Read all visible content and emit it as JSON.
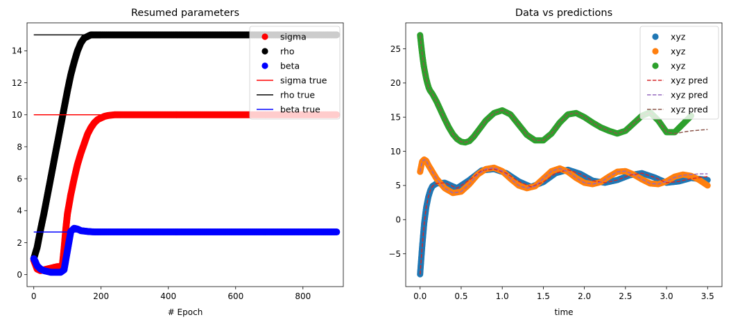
{
  "chart_data": [
    {
      "type": "scatter",
      "title": "Resumed parameters",
      "xlabel": "# Epoch",
      "ylabel": "",
      "xlim": [
        -20,
        920
      ],
      "ylim": [
        -0.75,
        15.75
      ],
      "xticks": [
        0,
        200,
        400,
        600,
        800
      ],
      "yticks": [
        0,
        2,
        4,
        6,
        8,
        10,
        12,
        14
      ],
      "grid": false,
      "legend_position": "top-right",
      "series": [
        {
          "name": "sigma",
          "kind": "points",
          "color": "#ff0000",
          "x": [
            0,
            10,
            20,
            30,
            40,
            50,
            60,
            70,
            80,
            85,
            90,
            95,
            100,
            110,
            120,
            130,
            140,
            150,
            160,
            170,
            180,
            190,
            200,
            210,
            220,
            240,
            260,
            300,
            400,
            500,
            600,
            700,
            800,
            900
          ],
          "y": [
            0.9,
            0.35,
            0.25,
            0.3,
            0.35,
            0.4,
            0.45,
            0.5,
            0.5,
            0.6,
            1.6,
            2.8,
            3.8,
            5.0,
            6.0,
            6.9,
            7.6,
            8.2,
            8.8,
            9.2,
            9.5,
            9.7,
            9.8,
            9.9,
            9.95,
            10.0,
            10.0,
            10.0,
            10.0,
            10.0,
            10.0,
            10.0,
            10.0,
            10.0
          ]
        },
        {
          "name": "rho",
          "kind": "points",
          "color": "#000000",
          "x": [
            0,
            10,
            20,
            30,
            40,
            50,
            60,
            70,
            80,
            90,
            100,
            110,
            120,
            130,
            140,
            150,
            160,
            170,
            180,
            190,
            200,
            250,
            300,
            400,
            500,
            600,
            700,
            800,
            900
          ],
          "y": [
            1.0,
            1.7,
            2.8,
            3.8,
            4.9,
            6.0,
            7.1,
            8.2,
            9.3,
            10.4,
            11.5,
            12.5,
            13.3,
            14.0,
            14.5,
            14.8,
            14.9,
            15.0,
            15.0,
            15.0,
            15.0,
            15.0,
            15.0,
            15.0,
            15.0,
            15.0,
            15.0,
            15.0,
            15.0
          ]
        },
        {
          "name": "beta",
          "kind": "points",
          "color": "#0000ff",
          "x": [
            0,
            5,
            10,
            20,
            30,
            40,
            50,
            60,
            70,
            80,
            90,
            100,
            110,
            120,
            130,
            140,
            160,
            180,
            200,
            300,
            400,
            500,
            600,
            700,
            800,
            900
          ],
          "y": [
            1.0,
            0.8,
            0.55,
            0.35,
            0.25,
            0.2,
            0.15,
            0.15,
            0.15,
            0.15,
            0.3,
            1.5,
            2.7,
            2.9,
            2.85,
            2.75,
            2.7,
            2.67,
            2.67,
            2.67,
            2.67,
            2.67,
            2.67,
            2.67,
            2.67,
            2.67
          ]
        },
        {
          "name": "sigma true",
          "kind": "line",
          "color": "#ff0000",
          "x": [
            0,
            900
          ],
          "y": [
            10.0,
            10.0
          ]
        },
        {
          "name": "rho true",
          "kind": "line",
          "color": "#000000",
          "x": [
            0,
            900
          ],
          "y": [
            15.0,
            15.0
          ]
        },
        {
          "name": "beta true",
          "kind": "line",
          "color": "#0000ff",
          "x": [
            0,
            900
          ],
          "y": [
            2.667,
            2.667
          ]
        }
      ]
    },
    {
      "type": "scatter",
      "title": "Data vs predictions",
      "xlabel": "time",
      "ylabel": "",
      "xlim": [
        -0.175,
        3.675
      ],
      "ylim": [
        -9.8,
        28.8
      ],
      "xticks": [
        0.0,
        0.5,
        1.0,
        1.5,
        2.0,
        2.5,
        3.0,
        3.5
      ],
      "yticks": [
        -5,
        0,
        5,
        10,
        15,
        20,
        25
      ],
      "grid": false,
      "legend_position": "top-right",
      "series": [
        {
          "name": "xyz",
          "kind": "points",
          "color": "#1f77b4",
          "x": [
            0.0,
            0.025,
            0.05,
            0.075,
            0.1,
            0.125,
            0.15,
            0.2,
            0.3,
            0.45,
            0.6,
            0.75,
            0.9,
            1.05,
            1.2,
            1.35,
            1.5,
            1.65,
            1.8,
            1.95,
            2.1,
            2.25,
            2.4,
            2.55,
            2.7,
            2.85,
            3.0,
            3.15,
            3.3,
            3.5
          ],
          "y": [
            -8.0,
            -4.0,
            -0.5,
            1.8,
            3.3,
            4.3,
            4.9,
            5.3,
            5.4,
            4.6,
            5.8,
            7.2,
            7.4,
            6.8,
            5.6,
            4.8,
            5.5,
            6.8,
            7.3,
            6.7,
            5.7,
            5.4,
            5.8,
            6.5,
            6.8,
            6.2,
            5.4,
            5.6,
            6.1,
            5.8
          ]
        },
        {
          "name": "xyz",
          "kind": "points",
          "color": "#ff7f0e",
          "x": [
            0.0,
            0.025,
            0.05,
            0.075,
            0.1,
            0.15,
            0.2,
            0.3,
            0.4,
            0.5,
            0.6,
            0.7,
            0.8,
            0.9,
            1.0,
            1.1,
            1.2,
            1.3,
            1.4,
            1.5,
            1.6,
            1.7,
            1.8,
            1.9,
            2.0,
            2.1,
            2.2,
            2.3,
            2.4,
            2.5,
            2.6,
            2.7,
            2.8,
            2.9,
            3.0,
            3.1,
            3.2,
            3.3,
            3.4,
            3.5
          ],
          "y": [
            7.0,
            8.5,
            8.8,
            8.6,
            8.0,
            7.0,
            6.0,
            4.6,
            3.9,
            4.1,
            5.2,
            6.6,
            7.4,
            7.6,
            7.1,
            6.0,
            5.0,
            4.6,
            4.9,
            6.0,
            7.1,
            7.5,
            7.0,
            6.1,
            5.4,
            5.2,
            5.5,
            6.3,
            7.0,
            7.1,
            6.6,
            5.9,
            5.3,
            5.2,
            5.6,
            6.3,
            6.6,
            6.4,
            5.8,
            5.0
          ]
        },
        {
          "name": "xyz",
          "kind": "points",
          "color": "#2ca02c",
          "x": [
            0.0,
            0.015,
            0.03,
            0.045,
            0.06,
            0.075,
            0.09,
            0.105,
            0.12,
            0.15,
            0.2,
            0.25,
            0.3,
            0.35,
            0.4,
            0.45,
            0.5,
            0.55,
            0.6,
            0.65,
            0.7,
            0.8,
            0.9,
            1.0,
            1.1,
            1.2,
            1.3,
            1.4,
            1.5,
            1.6,
            1.7,
            1.8,
            1.9,
            2.0,
            2.1,
            2.2,
            2.3,
            2.4,
            2.5,
            2.6,
            2.7,
            2.8,
            2.9,
            3.0,
            3.1,
            3.2,
            3.3
          ],
          "y": [
            27.0,
            25.3,
            23.8,
            22.5,
            21.5,
            20.6,
            19.9,
            19.3,
            18.9,
            18.4,
            17.3,
            16.0,
            14.7,
            13.5,
            12.5,
            11.8,
            11.4,
            11.3,
            11.5,
            12.1,
            12.9,
            14.5,
            15.6,
            16.0,
            15.4,
            13.9,
            12.4,
            11.6,
            11.6,
            12.6,
            14.2,
            15.4,
            15.6,
            15.0,
            14.2,
            13.5,
            13.0,
            12.6,
            13.0,
            14.1,
            15.2,
            15.7,
            14.5,
            12.8,
            12.8,
            14.0,
            15.2
          ]
        },
        {
          "name": "xyz pred",
          "kind": "dashed",
          "color": "#d62728",
          "x": [
            0.0,
            0.025,
            0.05,
            0.075,
            0.1,
            0.125,
            0.15,
            0.2,
            0.3,
            0.45,
            0.6,
            0.75,
            0.9,
            1.05,
            1.2,
            1.35,
            1.5,
            1.65,
            1.8,
            1.95,
            2.1,
            2.25,
            2.4,
            2.55,
            2.7,
            2.85,
            3.0,
            3.15,
            3.3,
            3.5
          ],
          "y": [
            -8.0,
            -4.0,
            -0.5,
            1.8,
            3.3,
            4.3,
            4.9,
            5.3,
            5.4,
            4.6,
            5.8,
            7.2,
            7.4,
            6.8,
            5.6,
            4.8,
            5.5,
            6.8,
            7.3,
            6.7,
            5.7,
            5.4,
            5.8,
            6.5,
            6.8,
            6.2,
            5.4,
            5.6,
            6.0,
            6.3
          ]
        },
        {
          "name": "xyz pred",
          "kind": "dashed",
          "color": "#9467bd",
          "x": [
            0.0,
            0.025,
            0.05,
            0.075,
            0.1,
            0.15,
            0.2,
            0.3,
            0.4,
            0.5,
            0.6,
            0.7,
            0.8,
            0.9,
            1.0,
            1.1,
            1.2,
            1.3,
            1.4,
            1.5,
            1.6,
            1.7,
            1.8,
            1.9,
            2.0,
            2.1,
            2.2,
            2.3,
            2.4,
            2.5,
            2.6,
            2.7,
            2.8,
            2.9,
            3.0,
            3.1,
            3.2,
            3.3,
            3.4,
            3.5
          ],
          "y": [
            7.0,
            8.5,
            8.8,
            8.6,
            8.0,
            7.0,
            6.0,
            4.6,
            3.9,
            4.1,
            5.2,
            6.6,
            7.4,
            7.6,
            7.1,
            6.0,
            5.0,
            4.6,
            4.9,
            6.0,
            7.1,
            7.5,
            7.0,
            6.1,
            5.4,
            5.2,
            5.5,
            6.3,
            7.0,
            7.1,
            6.6,
            5.9,
            5.3,
            5.2,
            5.6,
            6.2,
            6.5,
            6.6,
            6.7,
            6.7
          ]
        },
        {
          "name": "xyz pred",
          "kind": "dashed",
          "color": "#8c564b",
          "x": [
            0.0,
            0.015,
            0.03,
            0.045,
            0.06,
            0.075,
            0.09,
            0.105,
            0.12,
            0.15,
            0.2,
            0.25,
            0.3,
            0.35,
            0.4,
            0.45,
            0.5,
            0.55,
            0.6,
            0.65,
            0.7,
            0.8,
            0.9,
            1.0,
            1.1,
            1.2,
            1.3,
            1.4,
            1.5,
            1.6,
            1.7,
            1.8,
            1.9,
            2.0,
            2.1,
            2.2,
            2.3,
            2.4,
            2.5,
            2.6,
            2.7,
            2.8,
            2.9,
            3.0,
            3.1,
            3.2,
            3.3,
            3.5
          ],
          "y": [
            27.0,
            25.3,
            23.8,
            22.5,
            21.5,
            20.6,
            19.9,
            19.3,
            18.9,
            18.4,
            17.3,
            16.0,
            14.7,
            13.5,
            12.5,
            11.8,
            11.4,
            11.3,
            11.5,
            12.1,
            12.9,
            14.5,
            15.6,
            16.0,
            15.4,
            13.9,
            12.4,
            11.6,
            11.6,
            12.6,
            14.2,
            15.4,
            15.6,
            15.0,
            14.2,
            13.5,
            13.0,
            12.6,
            13.0,
            14.1,
            15.2,
            15.7,
            14.5,
            12.8,
            12.6,
            12.8,
            13.0,
            13.2
          ]
        }
      ]
    }
  ]
}
